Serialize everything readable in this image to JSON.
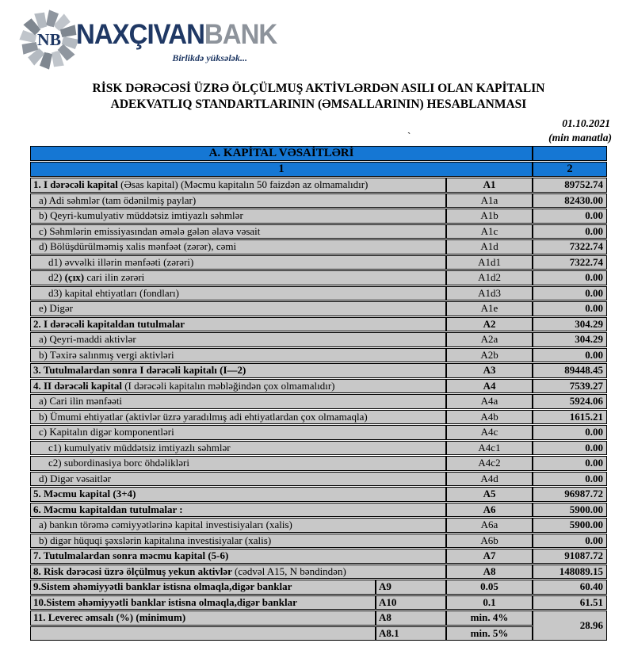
{
  "brand": {
    "emblem_text": "NB",
    "name_primary": "NAXÇIVAN",
    "name_secondary": "BANK",
    "slogan": "Birlikdə yüksələk...",
    "navy": "#1f3864",
    "gray": "#8d939b"
  },
  "title": {
    "line1": "RİSK DƏRƏCƏSİ ÜZRƏ ÖLÇÜLMUŞ AKTİVLƏRDƏN ASILI OLAN KAPİTALIN",
    "line2": "ADEKVATLIQ STANDARTLARININ (ƏMSALLARININ) HESABLANMASI"
  },
  "date": "01.10.2021",
  "unit_note": "(min manatla)",
  "stray_mark": "`",
  "table": {
    "colors": {
      "header_blue": "#1577d4",
      "row_gray": "#c8c8c8"
    },
    "section_header": "A. KAPİTAL VƏSAİTLƏRİ",
    "col1_header": "1",
    "col2_header": "2",
    "rows": [
      {
        "label": [
          {
            "t": "1. I dərəcəli kapital ",
            "b": true
          },
          {
            "t": "(Əsas kapital) (Məcmu kapitalın 50 faizdən  az olmamalıdır)",
            "b": false
          }
        ],
        "code": "A1",
        "code_bold": true,
        "value": "89752.74",
        "lvl": 0
      },
      {
        "label": [
          {
            "t": "a) Adi səhmlər (tam ödənilmiş paylar)",
            "b": false
          }
        ],
        "code": "A1a",
        "code_bold": false,
        "value": "82430.00",
        "lvl": 1
      },
      {
        "label": [
          {
            "t": "b) Qeyri-kumulyativ müddətsiz imtiyazlı səhmlər",
            "b": false
          }
        ],
        "code": "A1b",
        "code_bold": false,
        "value": "0.00",
        "lvl": 1
      },
      {
        "label": [
          {
            "t": "c) Səhmlərin emissiyasından əmələ gələn  əlavə vəsait",
            "b": false
          }
        ],
        "code": "A1c",
        "code_bold": false,
        "value": "0.00",
        "lvl": 1
      },
      {
        "label": [
          {
            "t": "d)   Bölüşdürülməmiş xalis mənfəət (zərər), cəmi",
            "b": false
          }
        ],
        "code": "A1d",
        "code_bold": false,
        "value": "7322.74",
        "lvl": 1
      },
      {
        "label": [
          {
            "t": "d1) əvvəlki illərin mənfəəti (zərəri)",
            "b": false
          }
        ],
        "code": "A1d1",
        "code_bold": false,
        "value": "7322.74",
        "lvl": 2
      },
      {
        "label": [
          {
            "t": "d2) ",
            "b": false
          },
          {
            "t": "(çıx)",
            "b": true
          },
          {
            "t": " cari ilin zərəri",
            "b": false
          }
        ],
        "code": "A1d2",
        "code_bold": false,
        "value": "0.00",
        "lvl": 2
      },
      {
        "label": [
          {
            "t": "d3) kapital ehtiyatları (fondları)",
            "b": false
          }
        ],
        "code": "A1d3",
        "code_bold": false,
        "value": "0.00",
        "lvl": 2
      },
      {
        "label": [
          {
            "t": "e) Digər",
            "b": false
          }
        ],
        "code": "A1e",
        "code_bold": false,
        "value": "0.00",
        "lvl": 1
      },
      {
        "label": [
          {
            "t": "2. I dərəcəli kapitaldan  tutulmalar",
            "b": true
          }
        ],
        "code": "A2",
        "code_bold": true,
        "value": "304.29",
        "lvl": 0
      },
      {
        "label": [
          {
            "t": "a) Qeyri-maddi aktivlər",
            "b": false
          }
        ],
        "code": "A2a",
        "code_bold": false,
        "value": "304.29",
        "lvl": 1
      },
      {
        "label": [
          {
            "t": "b) Təxirə salınmış vergi aktivləri",
            "b": false
          }
        ],
        "code": "A2b",
        "code_bold": false,
        "value": "0.00",
        "lvl": 1
      },
      {
        "label": [
          {
            "t": "3. Tutulmalardan  sonra I dərəcəli kapitalı (I—2)",
            "b": true
          }
        ],
        "code": "A3",
        "code_bold": true,
        "value": "89448.45",
        "lvl": 0
      },
      {
        "label": [
          {
            "t": "4. II dərəcəli  kapital ",
            "b": true
          },
          {
            "t": "(I dərəcəli  kapitalın  məbləğindən çox olmamalıdır)",
            "b": false
          }
        ],
        "code": "A4",
        "code_bold": true,
        "value": "7539.27",
        "lvl": 0
      },
      {
        "label": [
          {
            "t": "a) Cari ilin mənfəəti",
            "b": false
          }
        ],
        "code": "A4a",
        "code_bold": false,
        "value": "5924.06",
        "lvl": 1
      },
      {
        "label": [
          {
            "t": "b) Ümumi ehtiyatlar (aktivlər üzrə yaradılmış adi ehtiyatlardan çox olmamaqla)",
            "b": false
          }
        ],
        "code": "A4b",
        "code_bold": false,
        "value": "1615.21",
        "lvl": 1
      },
      {
        "label": [
          {
            "t": "c)  Kapitalın digər komponentləri",
            "b": false
          }
        ],
        "code": "A4c",
        "code_bold": false,
        "value": "0.00",
        "lvl": 1
      },
      {
        "label": [
          {
            "t": "c1) kumulyativ müddətsiz imtiyazlı səhmlər",
            "b": false
          }
        ],
        "code": "A4c1",
        "code_bold": false,
        "value": "0.00",
        "lvl": 2
      },
      {
        "label": [
          {
            "t": "c2) subordinasiya borc öhdəlikləri",
            "b": false
          }
        ],
        "code": "A4c2",
        "code_bold": false,
        "value": "0.00",
        "lvl": 2
      },
      {
        "label": [
          {
            "t": "d) Digər vəsaitlər",
            "b": false
          }
        ],
        "code": "A4d",
        "code_bold": false,
        "value": "0.00",
        "lvl": 1
      },
      {
        "label": [
          {
            "t": "5. Məcmu kapital (3+4)",
            "b": true
          }
        ],
        "code": "A5",
        "code_bold": true,
        "value": "96987.72",
        "lvl": 0
      },
      {
        "label": [
          {
            "t": "6. Məcmu kapitaldan tutulmalar :",
            "b": true
          }
        ],
        "code": "A6",
        "code_bold": true,
        "value": "5900.00",
        "lvl": 0
      },
      {
        "label": [
          {
            "t": "a)   bankın törəmə cəmiyyətlərinə kapital investisiyaları (xalis)",
            "b": false
          }
        ],
        "code": "A6a",
        "code_bold": false,
        "value": "5900.00",
        "lvl": 1
      },
      {
        "label": [
          {
            "t": "b)   digər hüquqi şəxslərin kapitalına investisiyalar (xalis)",
            "b": false
          }
        ],
        "code": "A6b",
        "code_bold": false,
        "value": "0.00",
        "lvl": 1
      },
      {
        "label": [
          {
            "t": "7. Tutulmalardan  sonra məcmu kapital (5-6)",
            "b": true
          }
        ],
        "code": "A7",
        "code_bold": true,
        "value": "91087.72",
        "lvl": 0
      },
      {
        "label": [
          {
            "t": "8. Risk dərəcəsi üzrə ölçülmuş  yekun aktivlər  ",
            "b": true
          },
          {
            "t": "(cədvəl A15, N bəndindən)",
            "b": false
          }
        ],
        "code": "A8",
        "code_bold": true,
        "value": "148089.15",
        "lvl": 0
      }
    ],
    "bottom_rows": [
      {
        "label": "9.Sistem əhəmiyyətli banklar istisna olmaqla,digər banklar",
        "code": "A9",
        "mid": "0.05",
        "value": "60.40"
      },
      {
        "label": "10.Sistem əhəmiyyətli banklar istisna olmaqla,digər banklar",
        "code": "A10",
        "mid": "0.1",
        "value": "61.51"
      }
    ],
    "leverage": {
      "label": "11. Leverec əmsalı (%) (minimum)",
      "code1": "A8",
      "mid1": "min. 4%",
      "code2": "A8.1",
      "mid2": "min. 5%",
      "value": "28.96"
    }
  }
}
